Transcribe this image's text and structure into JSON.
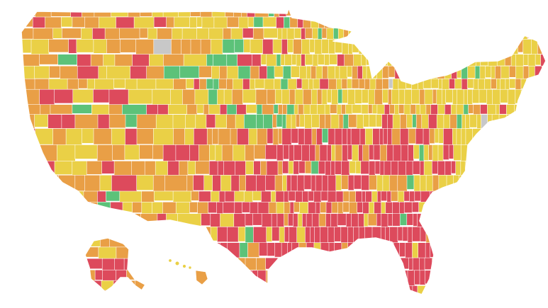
{
  "map": {
    "title": "",
    "legend": [],
    "categories": [
      {
        "key": "low",
        "color": "#5cc279"
      },
      {
        "key": "moderate",
        "color": "#ead046"
      },
      {
        "key": "substantial",
        "color": "#e99f46"
      },
      {
        "key": "high",
        "color": "#dd4a5c"
      },
      {
        "key": "no-data",
        "color": "#c8c8c8"
      }
    ],
    "regions": [
      {
        "name": "contiguous-us"
      },
      {
        "name": "alaska"
      },
      {
        "name": "hawaii"
      }
    ],
    "hotspots": [
      {
        "area": "southeast",
        "category": "high"
      },
      {
        "area": "south-central",
        "category": "high"
      },
      {
        "area": "florida",
        "category": "high"
      },
      {
        "area": "upper-midwest",
        "category": "low"
      },
      {
        "area": "northern-plains",
        "category": "low"
      },
      {
        "area": "northeast",
        "category": "moderate"
      },
      {
        "area": "west",
        "category": "substantial"
      },
      {
        "area": "southern-alaska",
        "category": "high"
      }
    ]
  }
}
